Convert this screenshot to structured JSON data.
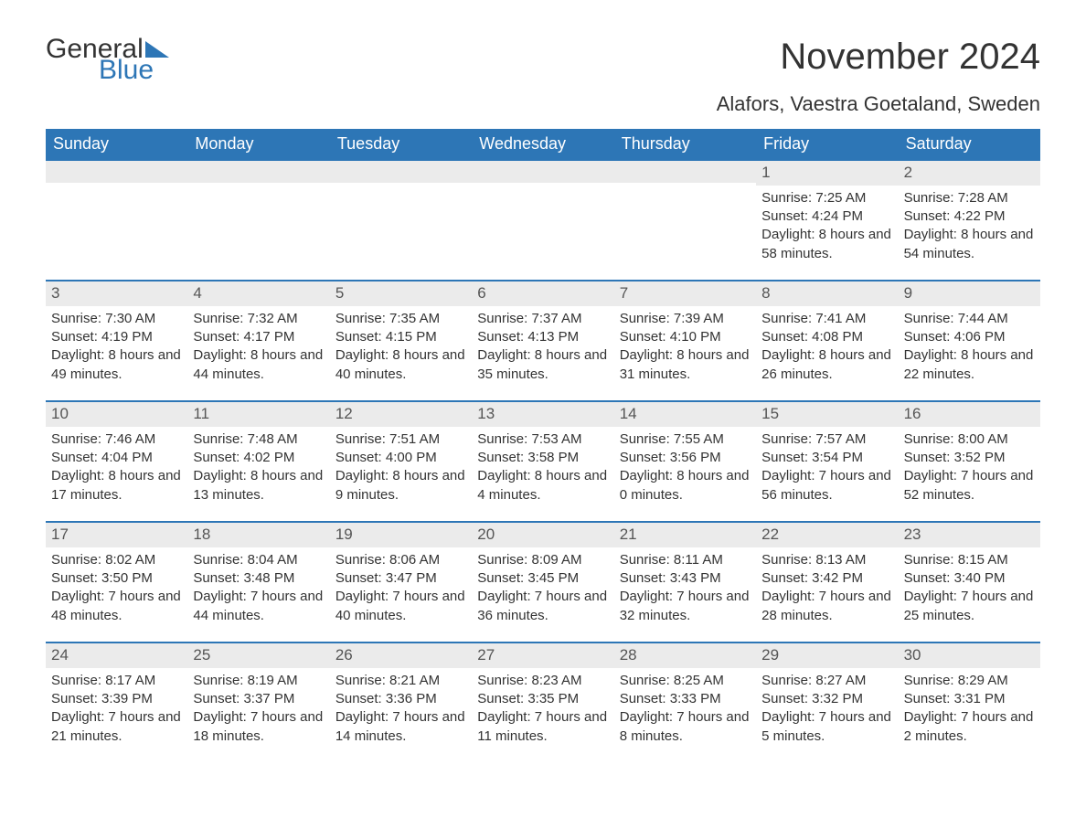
{
  "logo": {
    "text1": "General",
    "text2": "Blue",
    "color1": "#333333",
    "color2": "#2d76b6"
  },
  "title": "November 2024",
  "location": "Alafors, Vaestra Goetaland, Sweden",
  "header_bg": "#2d76b6",
  "header_fg": "#ffffff",
  "strip_bg": "#ebebeb",
  "border_color": "#2d76b6",
  "text_color": "#333333",
  "weekdays": [
    "Sunday",
    "Monday",
    "Tuesday",
    "Wednesday",
    "Thursday",
    "Friday",
    "Saturday"
  ],
  "labels": {
    "sunrise": "Sunrise:",
    "sunset": "Sunset:",
    "daylight": "Daylight:"
  },
  "weeks": [
    [
      {
        "empty": true
      },
      {
        "empty": true
      },
      {
        "empty": true
      },
      {
        "empty": true
      },
      {
        "empty": true
      },
      {
        "day": "1",
        "sunrise": "7:25 AM",
        "sunset": "4:24 PM",
        "daylight": "8 hours and 58 minutes."
      },
      {
        "day": "2",
        "sunrise": "7:28 AM",
        "sunset": "4:22 PM",
        "daylight": "8 hours and 54 minutes."
      }
    ],
    [
      {
        "day": "3",
        "sunrise": "7:30 AM",
        "sunset": "4:19 PM",
        "daylight": "8 hours and 49 minutes."
      },
      {
        "day": "4",
        "sunrise": "7:32 AM",
        "sunset": "4:17 PM",
        "daylight": "8 hours and 44 minutes."
      },
      {
        "day": "5",
        "sunrise": "7:35 AM",
        "sunset": "4:15 PM",
        "daylight": "8 hours and 40 minutes."
      },
      {
        "day": "6",
        "sunrise": "7:37 AM",
        "sunset": "4:13 PM",
        "daylight": "8 hours and 35 minutes."
      },
      {
        "day": "7",
        "sunrise": "7:39 AM",
        "sunset": "4:10 PM",
        "daylight": "8 hours and 31 minutes."
      },
      {
        "day": "8",
        "sunrise": "7:41 AM",
        "sunset": "4:08 PM",
        "daylight": "8 hours and 26 minutes."
      },
      {
        "day": "9",
        "sunrise": "7:44 AM",
        "sunset": "4:06 PM",
        "daylight": "8 hours and 22 minutes."
      }
    ],
    [
      {
        "day": "10",
        "sunrise": "7:46 AM",
        "sunset": "4:04 PM",
        "daylight": "8 hours and 17 minutes."
      },
      {
        "day": "11",
        "sunrise": "7:48 AM",
        "sunset": "4:02 PM",
        "daylight": "8 hours and 13 minutes."
      },
      {
        "day": "12",
        "sunrise": "7:51 AM",
        "sunset": "4:00 PM",
        "daylight": "8 hours and 9 minutes."
      },
      {
        "day": "13",
        "sunrise": "7:53 AM",
        "sunset": "3:58 PM",
        "daylight": "8 hours and 4 minutes."
      },
      {
        "day": "14",
        "sunrise": "7:55 AM",
        "sunset": "3:56 PM",
        "daylight": "8 hours and 0 minutes."
      },
      {
        "day": "15",
        "sunrise": "7:57 AM",
        "sunset": "3:54 PM",
        "daylight": "7 hours and 56 minutes."
      },
      {
        "day": "16",
        "sunrise": "8:00 AM",
        "sunset": "3:52 PM",
        "daylight": "7 hours and 52 minutes."
      }
    ],
    [
      {
        "day": "17",
        "sunrise": "8:02 AM",
        "sunset": "3:50 PM",
        "daylight": "7 hours and 48 minutes."
      },
      {
        "day": "18",
        "sunrise": "8:04 AM",
        "sunset": "3:48 PM",
        "daylight": "7 hours and 44 minutes."
      },
      {
        "day": "19",
        "sunrise": "8:06 AM",
        "sunset": "3:47 PM",
        "daylight": "7 hours and 40 minutes."
      },
      {
        "day": "20",
        "sunrise": "8:09 AM",
        "sunset": "3:45 PM",
        "daylight": "7 hours and 36 minutes."
      },
      {
        "day": "21",
        "sunrise": "8:11 AM",
        "sunset": "3:43 PM",
        "daylight": "7 hours and 32 minutes."
      },
      {
        "day": "22",
        "sunrise": "8:13 AM",
        "sunset": "3:42 PM",
        "daylight": "7 hours and 28 minutes."
      },
      {
        "day": "23",
        "sunrise": "8:15 AM",
        "sunset": "3:40 PM",
        "daylight": "7 hours and 25 minutes."
      }
    ],
    [
      {
        "day": "24",
        "sunrise": "8:17 AM",
        "sunset": "3:39 PM",
        "daylight": "7 hours and 21 minutes."
      },
      {
        "day": "25",
        "sunrise": "8:19 AM",
        "sunset": "3:37 PM",
        "daylight": "7 hours and 18 minutes."
      },
      {
        "day": "26",
        "sunrise": "8:21 AM",
        "sunset": "3:36 PM",
        "daylight": "7 hours and 14 minutes."
      },
      {
        "day": "27",
        "sunrise": "8:23 AM",
        "sunset": "3:35 PM",
        "daylight": "7 hours and 11 minutes."
      },
      {
        "day": "28",
        "sunrise": "8:25 AM",
        "sunset": "3:33 PM",
        "daylight": "7 hours and 8 minutes."
      },
      {
        "day": "29",
        "sunrise": "8:27 AM",
        "sunset": "3:32 PM",
        "daylight": "7 hours and 5 minutes."
      },
      {
        "day": "30",
        "sunrise": "8:29 AM",
        "sunset": "3:31 PM",
        "daylight": "7 hours and 2 minutes."
      }
    ]
  ]
}
